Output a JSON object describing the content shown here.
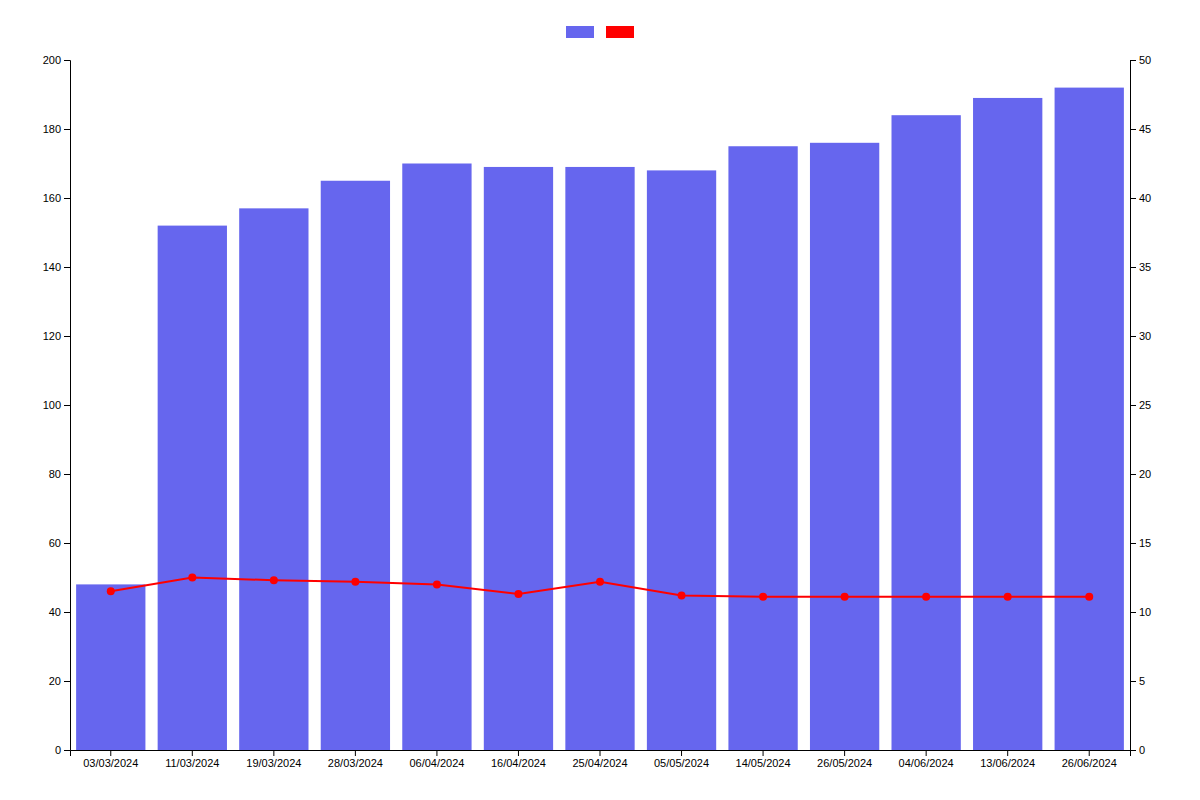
{
  "chart_data": {
    "type": "bar",
    "categories": [
      "03/03/2024",
      "11/03/2024",
      "19/03/2024",
      "28/03/2024",
      "06/04/2024",
      "16/04/2024",
      "25/04/2024",
      "05/05/2024",
      "14/05/2024",
      "26/05/2024",
      "04/06/2024",
      "13/06/2024",
      "26/06/2024"
    ],
    "series": [
      {
        "type": "bar",
        "color": "#6666ee",
        "values": [
          48,
          152,
          157,
          165,
          170,
          169,
          169,
          168,
          175,
          176,
          184,
          189,
          192
        ]
      },
      {
        "type": "line",
        "color": "#ff0000",
        "marker": "circle",
        "axis": "y2",
        "values": [
          11.5,
          12.5,
          12.3,
          12.2,
          12.0,
          11.3,
          12.2,
          11.2,
          11.1,
          11.1,
          11.1,
          11.1,
          11.1
        ]
      }
    ],
    "ylim": [
      0,
      200
    ],
    "yticks": [
      0,
      20,
      40,
      60,
      80,
      100,
      120,
      140,
      160,
      180,
      200
    ],
    "y2lim": [
      0,
      50
    ],
    "y2ticks": [
      0,
      5,
      10,
      15,
      20,
      25,
      30,
      35,
      40,
      45,
      50
    ],
    "grid": false,
    "legend": "top"
  }
}
